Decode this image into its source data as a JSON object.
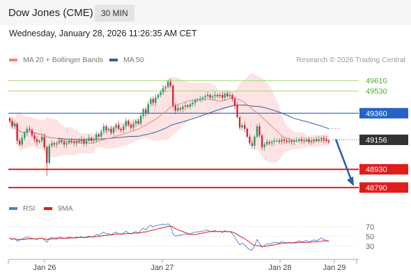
{
  "header": {
    "title": "Dow Jones (CME)",
    "timeframe": "30 MIN"
  },
  "datetime": "Wednesday, January 28, 2026 11:26:35 AM CET",
  "legend": {
    "ma20": {
      "label": "MA 20 + Bollinger Bands",
      "color": "#f4827c"
    },
    "ma50": {
      "label": "MA 50",
      "color": "#2e5f9e"
    }
  },
  "credit": "Research © 2026 Trading Central",
  "rsi_legend": {
    "rsi": {
      "label": "RSI",
      "color": "#4a7fd0"
    },
    "ma9": {
      "label": "9MA",
      "color": "#e01818"
    }
  },
  "colors": {
    "up": "#2a9d63",
    "down": "#d0283a",
    "bollinger_fill": "#fde0e0",
    "resistance_line": "#a8d878",
    "pivot": "#2563c9",
    "support": "#e21b1b",
    "last_price": "#333333",
    "arrow": "#2b5fa8"
  },
  "chart_data": {
    "type": "candlestick",
    "y_range": [
      48720,
      49720
    ],
    "x_ticks": [
      "Jan 26",
      "Jan 27",
      "Jan 28",
      "Jan 29"
    ],
    "levels": [
      {
        "value": 49610,
        "label": "49610",
        "kind": "resistance"
      },
      {
        "value": 49530,
        "label": "49530",
        "kind": "resistance"
      },
      {
        "value": 49360,
        "label": "49360",
        "kind": "pivot"
      },
      {
        "value": 49156,
        "label": "49156",
        "kind": "last"
      },
      {
        "value": 48930,
        "label": "48930",
        "kind": "support"
      },
      {
        "value": 48790,
        "label": "48790",
        "kind": "support"
      }
    ],
    "forecast_arrow": {
      "from": 49160,
      "to": 48800,
      "direction": "down"
    },
    "candles_close": [
      49300,
      49260,
      49280,
      49150,
      49120,
      49170,
      49210,
      49240,
      49230,
      49190,
      49160,
      49140,
      49150,
      49180,
      49100,
      48980,
      49110,
      49130,
      49120,
      49130,
      49150,
      49140,
      49120,
      49130,
      49150,
      49140,
      49130,
      49150,
      49140,
      49160,
      49130,
      49150,
      49170,
      49150,
      49160,
      49200,
      49180,
      49220,
      49260,
      49230,
      49240,
      49210,
      49250,
      49270,
      49240,
      49230,
      49260,
      49300,
      49270,
      49250,
      49280,
      49300,
      49280,
      49340,
      49390,
      49360,
      49430,
      49470,
      49440,
      49480,
      49500,
      49520,
      49550,
      49560,
      49600,
      49570,
      49420,
      49380,
      49400,
      49390,
      49410,
      49420,
      49410,
      49430,
      49440,
      49460,
      49460,
      49470,
      49480,
      49490,
      49500,
      49480,
      49490,
      49500,
      49490,
      49500,
      49480,
      49510,
      49490,
      49500,
      49470,
      49420,
      49330,
      49250,
      49270,
      49240,
      49180,
      49130,
      49110,
      49180,
      49260,
      49190,
      49100,
      49120,
      49140,
      49130,
      49140,
      49150,
      49150,
      49140,
      49160,
      49150,
      49140,
      49150,
      49140,
      49150,
      49150,
      49160,
      49150,
      49150,
      49160,
      49140,
      49150,
      49160,
      49150,
      49160,
      49170,
      49160,
      49150,
      49140
    ],
    "rsi": {
      "levels": [
        70,
        50,
        30
      ],
      "rsi_values": [
        48,
        44,
        46,
        40,
        42,
        45,
        47,
        49,
        48,
        46,
        45,
        44,
        46,
        47,
        43,
        38,
        46,
        48,
        47,
        47,
        49,
        48,
        46,
        47,
        49,
        48,
        47,
        49,
        48,
        50,
        47,
        49,
        51,
        49,
        50,
        54,
        52,
        56,
        59,
        55,
        56,
        53,
        57,
        59,
        55,
        54,
        57,
        61,
        57,
        55,
        58,
        60,
        57,
        63,
        67,
        63,
        70,
        73,
        69,
        72,
        73,
        74,
        75,
        74,
        76,
        72,
        55,
        51,
        53,
        52,
        54,
        55,
        54,
        56,
        57,
        59,
        59,
        60,
        61,
        62,
        63,
        60,
        61,
        62,
        60,
        61,
        58,
        62,
        59,
        60,
        56,
        48,
        40,
        33,
        36,
        33,
        27,
        23,
        22,
        31,
        44,
        36,
        28,
        31,
        35,
        34,
        36,
        38,
        38,
        36,
        40,
        38,
        36,
        38,
        36,
        38,
        39,
        41,
        39,
        40,
        42,
        38,
        41,
        43,
        41,
        44,
        47,
        44,
        42,
        39
      ],
      "ma9_values": [
        45,
        45,
        45,
        44,
        44,
        44,
        44,
        45,
        45,
        45,
        45,
        45,
        46,
        46,
        45,
        44,
        44,
        45,
        45,
        45,
        46,
        46,
        46,
        46,
        47,
        47,
        47,
        47,
        48,
        48,
        48,
        48,
        49,
        49,
        49,
        50,
        50,
        51,
        52,
        52,
        53,
        53,
        54,
        55,
        55,
        55,
        55,
        56,
        56,
        56,
        57,
        57,
        57,
        58,
        59,
        59,
        61,
        62,
        63,
        64,
        66,
        67,
        68,
        69,
        71,
        71,
        69,
        66,
        64,
        62,
        60,
        58,
        56,
        54,
        54,
        54,
        55,
        56,
        57,
        58,
        59,
        60,
        60,
        60,
        60,
        60,
        60,
        60,
        60,
        60,
        59,
        57,
        54,
        51,
        48,
        45,
        42,
        38,
        34,
        32,
        31,
        31,
        30,
        30,
        30,
        31,
        32,
        33,
        34,
        35,
        36,
        36,
        37,
        37,
        37,
        37,
        37,
        38,
        38,
        38,
        38,
        38,
        39,
        39,
        39,
        40,
        40,
        41,
        41,
        41
      ]
    }
  }
}
